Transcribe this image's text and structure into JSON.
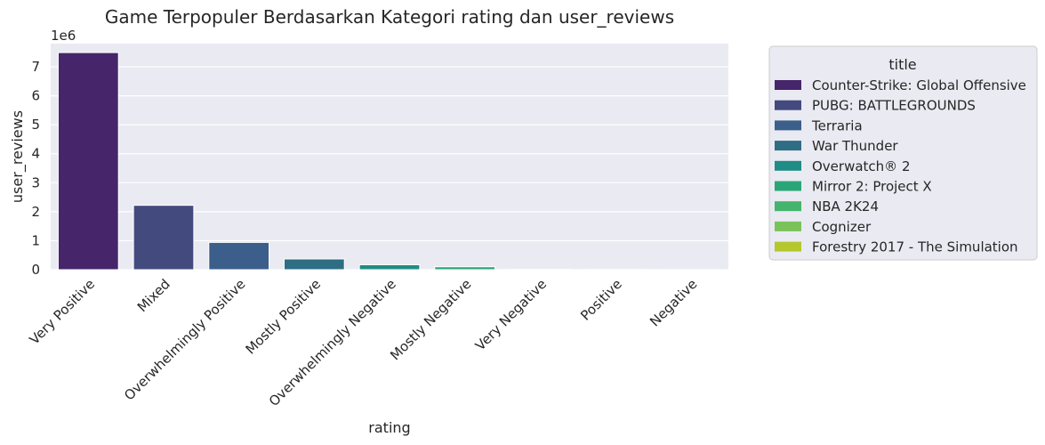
{
  "chart_data": {
    "type": "bar",
    "title": "Game Terpopuler Berdasarkan Kategori rating dan user_reviews",
    "xlabel": "rating",
    "ylabel": "user_reviews",
    "y_offset_label": "1e6",
    "ylim": [
      0,
      7.8
    ],
    "yticks": [
      0,
      1,
      2,
      3,
      4,
      5,
      6,
      7
    ],
    "grid": true,
    "legend_position": "right-outside",
    "legend_title": "title",
    "categories": [
      "Very Positive",
      "Mixed",
      "Overwhelmingly Positive",
      "Mostly Positive",
      "Overwhelmingly Negative",
      "Mostly Negative",
      "Very Negative",
      "Positive",
      "Negative"
    ],
    "values": [
      7.49,
      2.22,
      0.94,
      0.37,
      0.17,
      0.1,
      0.01,
      0.005,
      0.003
    ],
    "titles": [
      "Counter-Strike: Global Offensive",
      "PUBG: BATTLEGROUNDS",
      "Terraria",
      "War Thunder",
      "Overwatch® 2",
      "Mirror 2: Project X",
      "NBA 2K24",
      "Cognizer",
      "Forestry 2017 - The Simulation"
    ],
    "colors": [
      "#46256b",
      "#434a7e",
      "#3b5e8a",
      "#2d6e84",
      "#1f8c85",
      "#2aa578",
      "#45b46c",
      "#79c35a",
      "#b4c72c"
    ]
  }
}
